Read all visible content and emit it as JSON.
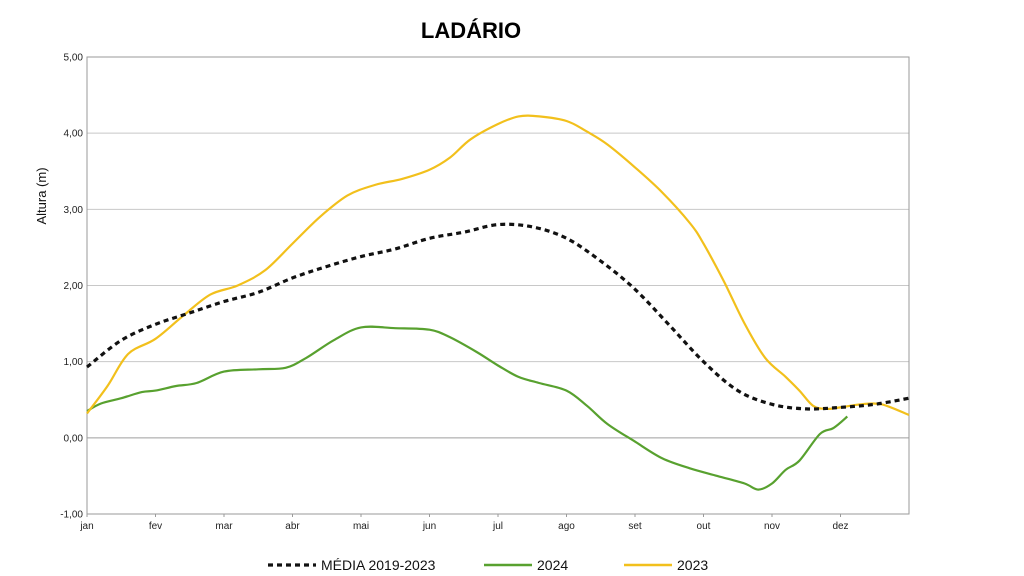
{
  "chart_data": {
    "type": "line",
    "title": "LADÁRIO",
    "ylabel": "Altura (m)",
    "xlabel": "",
    "ylim": [
      -1.0,
      5.0
    ],
    "y_ticks": [
      "-1,00",
      "0,00",
      "1,00",
      "2,00",
      "3,00",
      "4,00",
      "5,00"
    ],
    "x_ticks": [
      "jan",
      "fev",
      "mar",
      "abr",
      "mai",
      "jun",
      "jul",
      "ago",
      "set",
      "out",
      "nov",
      "dez"
    ],
    "grid": "horizontal",
    "legend_position": "bottom",
    "series": [
      {
        "name": "MÉDIA 2019-2023",
        "color": "#111111",
        "style": "dotted",
        "x": [
          0,
          0.5,
          1,
          1.5,
          2,
          2.5,
          3,
          3.5,
          4,
          4.5,
          5,
          5.5,
          6,
          6.5,
          7,
          7.5,
          8,
          8.5,
          9,
          9.5,
          10,
          10.5,
          11,
          11.5,
          12
        ],
        "y": [
          0.93,
          1.28,
          1.49,
          1.64,
          1.79,
          1.91,
          2.1,
          2.25,
          2.38,
          2.48,
          2.62,
          2.7,
          2.8,
          2.77,
          2.62,
          2.32,
          1.95,
          1.48,
          1.0,
          0.62,
          0.44,
          0.38,
          0.4,
          0.44,
          0.52
        ]
      },
      {
        "name": "2024",
        "color": "#58a12f",
        "style": "solid",
        "x": [
          0,
          0.2,
          0.5,
          0.8,
          1,
          1.3,
          1.6,
          2,
          2.5,
          2.9,
          3.2,
          3.6,
          4,
          4.5,
          5,
          5.3,
          5.7,
          6,
          6.3,
          6.6,
          7,
          7.3,
          7.6,
          8,
          8.4,
          8.8,
          9.2,
          9.6,
          9.8,
          10,
          10.2,
          10.4,
          10.7,
          10.9,
          11.1
        ],
        "y": [
          0.35,
          0.45,
          0.52,
          0.6,
          0.62,
          0.68,
          0.72,
          0.87,
          0.9,
          0.92,
          1.05,
          1.28,
          1.45,
          1.44,
          1.42,
          1.32,
          1.12,
          0.95,
          0.8,
          0.72,
          0.62,
          0.42,
          0.18,
          -0.05,
          -0.27,
          -0.4,
          -0.5,
          -0.6,
          -0.68,
          -0.6,
          -0.42,
          -0.3,
          0.05,
          0.13,
          0.28
        ]
      },
      {
        "name": "2023",
        "color": "#f2c01c",
        "style": "solid",
        "x": [
          0,
          0.3,
          0.6,
          1,
          1.4,
          1.8,
          2.2,
          2.6,
          3,
          3.4,
          3.8,
          4.2,
          4.6,
          5,
          5.3,
          5.6,
          6,
          6.3,
          6.6,
          7,
          7.3,
          7.6,
          8,
          8.4,
          8.8,
          9,
          9.3,
          9.6,
          9.9,
          10.2,
          10.4,
          10.6,
          10.8,
          11,
          11.3,
          11.6,
          12
        ],
        "y": [
          0.32,
          0.68,
          1.1,
          1.3,
          1.6,
          1.88,
          2.0,
          2.2,
          2.55,
          2.9,
          3.18,
          3.32,
          3.4,
          3.52,
          3.68,
          3.92,
          4.12,
          4.22,
          4.22,
          4.16,
          4.02,
          3.85,
          3.55,
          3.22,
          2.82,
          2.55,
          2.05,
          1.5,
          1.05,
          0.8,
          0.62,
          0.42,
          0.38,
          0.4,
          0.44,
          0.44,
          0.3
        ]
      }
    ]
  }
}
